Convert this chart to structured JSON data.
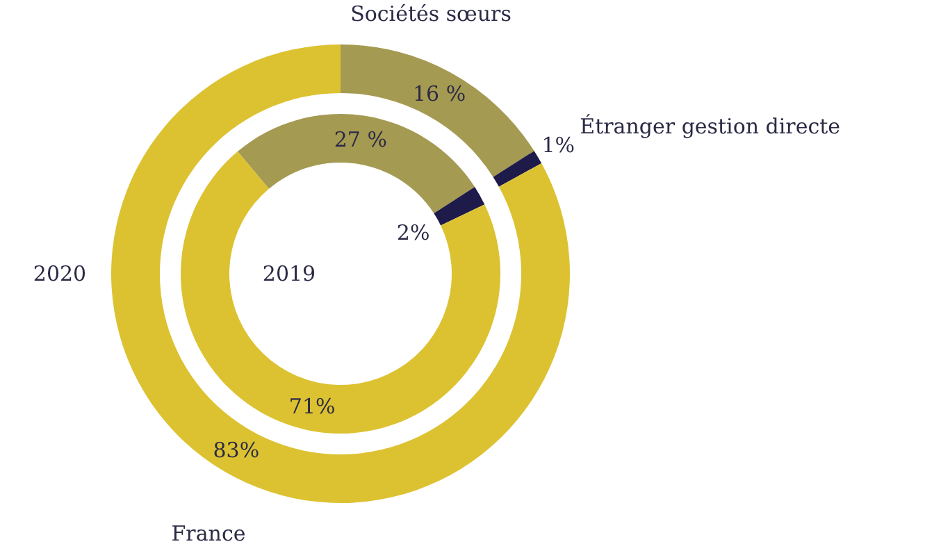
{
  "chart_data": {
    "type": "donut",
    "categories": [
      "Sociétés sœurs",
      "Étranger gestion directe",
      "France"
    ],
    "colors": [
      "#a59a52",
      "#1e1b4b",
      "#dcc231"
    ],
    "legend": false,
    "series": [
      {
        "name": "2020",
        "values": [
          16,
          1,
          83
        ],
        "value_labels": [
          "16 %",
          "1%",
          "83%"
        ]
      },
      {
        "name": "2019",
        "values": [
          27,
          2,
          71
        ],
        "value_labels": [
          "27 %",
          "2%",
          "71%"
        ]
      }
    ]
  }
}
